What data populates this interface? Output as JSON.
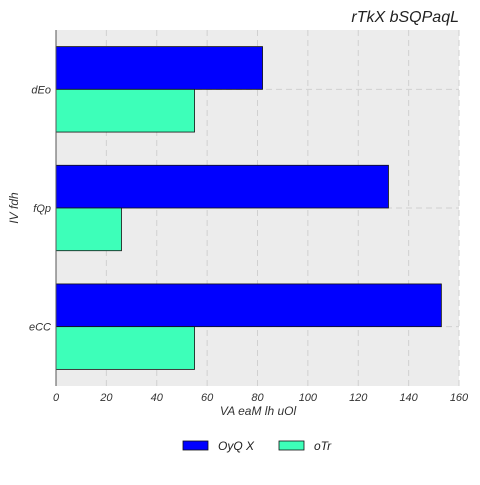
{
  "chart_data": {
    "type": "bar",
    "orientation": "horizontal",
    "title": "rTkX  bSQPaqL",
    "xlabel": "VA eaM lh uOl",
    "ylabel": "IV fdh",
    "categories": [
      "eCC",
      "fQp",
      "dEo"
    ],
    "series": [
      {
        "name": "OyQ X",
        "values": [
          153,
          132,
          82
        ],
        "color": "#0000ff"
      },
      {
        "name": "oTr",
        "values": [
          55,
          26,
          55
        ],
        "color": "#3dffb9"
      }
    ],
    "xlim": [
      0,
      160
    ],
    "xticks": [
      0,
      20,
      40,
      60,
      80,
      100,
      120,
      140,
      160
    ],
    "grid": true,
    "legend_position": "bottom-center"
  }
}
